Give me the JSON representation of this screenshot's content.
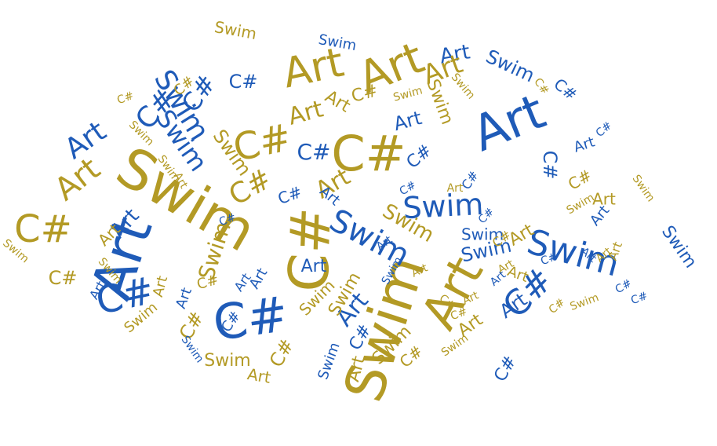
{
  "colors": {
    "blue": "#1f5bb8",
    "gold": "#b39a25",
    "background": "#ffffff"
  },
  "words": [
    {
      "text": "Swim",
      "color": "gold"
    },
    {
      "text": "Art",
      "color": "blue"
    },
    {
      "text": "C#",
      "color": "gold"
    },
    {
      "text": "Swim",
      "color": "gold"
    },
    {
      "text": "Art",
      "color": "blue"
    },
    {
      "text": "C#",
      "color": "blue"
    },
    {
      "text": "Art",
      "color": "gold"
    },
    {
      "text": "C#",
      "color": "blue"
    },
    {
      "text": "C#",
      "color": "gold"
    },
    {
      "text": "Art",
      "color": "gold"
    },
    {
      "text": "Art",
      "color": "gold"
    },
    {
      "text": "Swim",
      "color": "blue"
    },
    {
      "text": "Swim",
      "color": "blue"
    },
    {
      "text": "C#",
      "color": "gold"
    },
    {
      "text": "C#",
      "color": "gold"
    },
    {
      "text": "Swim",
      "color": "blue"
    },
    {
      "text": "Art",
      "color": "gold"
    },
    {
      "text": "Art",
      "color": "blue"
    },
    {
      "text": "C#",
      "color": "blue"
    },
    {
      "text": "C#",
      "color": "blue"
    },
    {
      "text": "Swim",
      "color": "blue"
    },
    {
      "text": "Swim",
      "color": "blue"
    },
    {
      "text": "Art",
      "color": "gold"
    },
    {
      "text": "Art",
      "color": "blue"
    },
    {
      "text": "C#",
      "color": "gold"
    },
    {
      "text": "Art",
      "color": "gold"
    },
    {
      "text": "C#",
      "color": "blue"
    },
    {
      "text": "Swim",
      "color": "blue"
    },
    {
      "text": "Art",
      "color": "blue"
    },
    {
      "text": "Swim",
      "color": "blue"
    },
    {
      "text": "C#",
      "color": "blue"
    },
    {
      "text": "Art",
      "color": "gold"
    },
    {
      "text": "C#",
      "color": "blue"
    },
    {
      "text": "Swim",
      "color": "gold"
    },
    {
      "text": "Art",
      "color": "gold"
    },
    {
      "text": "C#",
      "color": "gold"
    },
    {
      "text": "Art",
      "color": "blue"
    },
    {
      "text": "C#",
      "color": "blue"
    },
    {
      "text": "Art",
      "color": "blue"
    },
    {
      "text": "Swim",
      "color": "gold"
    },
    {
      "text": "Swim",
      "color": "gold"
    },
    {
      "text": "Art",
      "color": "blue"
    },
    {
      "text": "C#",
      "color": "gold"
    },
    {
      "text": "C#",
      "color": "blue"
    },
    {
      "text": "Swim",
      "color": "gold"
    },
    {
      "text": "Swim",
      "color": "blue"
    },
    {
      "text": "Art",
      "color": "blue"
    },
    {
      "text": "Swim",
      "color": "gold"
    },
    {
      "text": "Art",
      "color": "gold"
    },
    {
      "text": "Swim",
      "color": "blue"
    },
    {
      "text": "C#",
      "color": "blue"
    },
    {
      "text": "Swim",
      "color": "gold"
    },
    {
      "text": "C#",
      "color": "blue"
    },
    {
      "text": "Art",
      "color": "gold"
    },
    {
      "text": "Art",
      "color": "blue"
    },
    {
      "text": "C#",
      "color": "blue"
    },
    {
      "text": "Art",
      "color": "gold"
    },
    {
      "text": "Swim",
      "color": "gold"
    },
    {
      "text": "Art",
      "color": "gold"
    },
    {
      "text": "C#",
      "color": "gold"
    },
    {
      "text": "Swim",
      "color": "blue"
    },
    {
      "text": "Art",
      "color": "blue"
    },
    {
      "text": "C#",
      "color": "gold"
    },
    {
      "text": "Swim",
      "color": "gold"
    },
    {
      "text": "Art",
      "color": "gold"
    },
    {
      "text": "Swim",
      "color": "gold"
    },
    {
      "text": "C#",
      "color": "blue"
    },
    {
      "text": "C#",
      "color": "gold"
    },
    {
      "text": "Art",
      "color": "blue"
    },
    {
      "text": "Art",
      "color": "gold"
    },
    {
      "text": "Swim",
      "color": "gold"
    },
    {
      "text": "C#",
      "color": "blue"
    },
    {
      "text": "Swim",
      "color": "gold"
    },
    {
      "text": "Art",
      "color": "gold"
    },
    {
      "text": "C#",
      "color": "gold"
    },
    {
      "text": "Swim",
      "color": "blue"
    },
    {
      "text": "Art",
      "color": "gold"
    },
    {
      "text": "Swim",
      "color": "gold"
    },
    {
      "text": "C#",
      "color": "gold"
    },
    {
      "text": "Swim",
      "color": "blue"
    },
    {
      "text": "Art",
      "color": "blue"
    },
    {
      "text": "C#",
      "color": "gold"
    },
    {
      "text": "C#",
      "color": "blue"
    },
    {
      "text": "Swim",
      "color": "gold"
    },
    {
      "text": "Art",
      "color": "gold"
    },
    {
      "text": "Art",
      "color": "blue"
    },
    {
      "text": "C#",
      "color": "gold"
    },
    {
      "text": "Swim",
      "color": "gold"
    },
    {
      "text": "C#",
      "color": "blue"
    },
    {
      "text": "Art",
      "color": "blue"
    },
    {
      "text": "Art",
      "color": "gold"
    },
    {
      "text": "Swim",
      "color": "gold"
    },
    {
      "text": "C#",
      "color": "gold"
    },
    {
      "text": "C#",
      "color": "blue"
    },
    {
      "text": "Art",
      "color": "blue"
    },
    {
      "text": "Swim",
      "color": "gold"
    },
    {
      "text": "Swim",
      "color": "gold"
    },
    {
      "text": "Swim",
      "color": "blue"
    },
    {
      "text": "C#",
      "color": "gold"
    },
    {
      "text": "Art",
      "color": "blue"
    },
    {
      "text": "Art",
      "color": "gold"
    },
    {
      "text": "Swim",
      "color": "gold"
    },
    {
      "text": "Art",
      "color": "gold"
    },
    {
      "text": "C#",
      "color": "blue"
    },
    {
      "text": "C#",
      "color": "gold"
    },
    {
      "text": "Art",
      "color": "gold"
    },
    {
      "text": "C#",
      "color": "blue"
    },
    {
      "text": "Art",
      "color": "blue"
    },
    {
      "text": "C#",
      "color": "gold"
    },
    {
      "text": "C#",
      "color": "blue"
    },
    {
      "text": "Art",
      "color": "gold"
    },
    {
      "text": "Swim",
      "color": "gold"
    },
    {
      "text": "C#",
      "color": "blue"
    },
    {
      "text": "Art",
      "color": "blue"
    },
    {
      "text": "C#",
      "color": "gold"
    },
    {
      "text": "Swim",
      "color": "gold"
    },
    {
      "text": "C#",
      "color": "blue"
    },
    {
      "text": "Art",
      "color": "gold"
    }
  ]
}
